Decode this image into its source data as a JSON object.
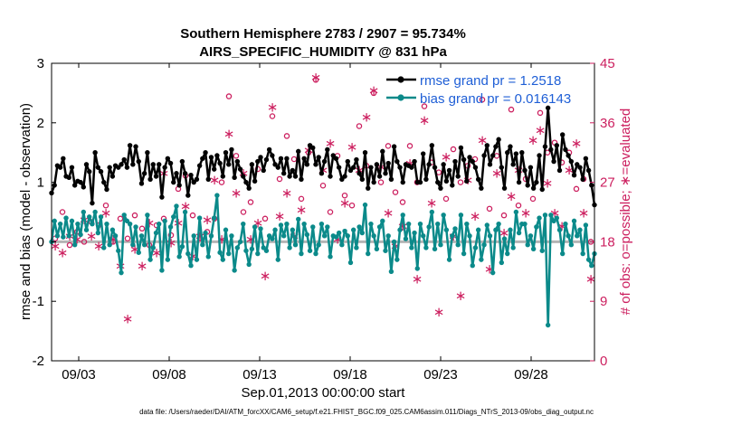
{
  "chart_data": {
    "type": "line",
    "title_line1": "Southern Hemisphere 2783 / 2907 = 95.734%",
    "title_line2": "AIRS_SPECIFIC_HUMIDITY @ 831 hPa",
    "xlabel": "Sep.01,2013 00:00:00 start",
    "ylabel_left": "rmse and bias (model - observation)",
    "ylabel_right": "# of obs: o=possible; ∗=evaluated",
    "footer": "data file: /Users/raeder/DAI/ATM_forcXX/CAM6_setup/f.e21.FHIST_BGC.f09_025.CAM6assim.011/Diags_NTrS_2013-09/obs_diag_output.nc",
    "xlim": [
      1.5,
      31.5
    ],
    "ylim_left": [
      -2,
      3
    ],
    "ylim_right": [
      0,
      45
    ],
    "x_ticks": [
      3,
      8,
      13,
      18,
      23,
      28
    ],
    "x_tick_labels": [
      "09/03",
      "09/08",
      "09/13",
      "09/18",
      "09/23",
      "09/28"
    ],
    "y_ticks_left": [
      -2,
      -1,
      0,
      1,
      2,
      3
    ],
    "y_ticks_left_labels": [
      "-2",
      "-1",
      "0",
      "1",
      "2",
      "3"
    ],
    "y_ticks_right": [
      0,
      9,
      18,
      27,
      36,
      45
    ],
    "y_ticks_right_labels": [
      "0",
      "9",
      "18",
      "27",
      "36",
      "45"
    ],
    "colors": {
      "rmse": "#000000",
      "bias": "#0b8a8a",
      "obs": "#cc1f5f",
      "zero_line": "#b4b4b4",
      "legend_text": "#1f5fd6"
    },
    "series": [
      {
        "name": "rmse grand pr = 1.2518",
        "values": [
          0.82,
          0.95,
          1.28,
          1.25,
          1.4,
          1.1,
          1.08,
          1.25,
          0.95,
          1.02,
          1.0,
          0.92,
          1.3,
          1.18,
          0.65,
          1.5,
          1.25,
          1.18,
          1.0,
          0.88,
          1.25,
          1.1,
          1.28,
          1.25,
          1.3,
          1.38,
          1.25,
          1.62,
          1.3,
          1.6,
          1.35,
          0.98,
          1.15,
          1.5,
          1.05,
          1.3,
          1.1,
          1.3,
          0.75,
          1.25,
          1.4,
          1.32,
          1.0,
          1.15,
          0.95,
          1.35,
          1.15,
          0.78,
          1.12,
          1.0,
          1.05,
          1.28,
          1.4,
          1.5,
          1.05,
          1.42,
          1.22,
          1.45,
          1.32,
          1.1,
          1.5,
          1.3,
          1.55,
          1.08,
          1.35,
          1.22,
          1.1,
          1.0,
          0.9,
          1.3,
          1.02,
          1.35,
          1.42,
          1.2,
          1.38,
          1.55,
          1.45,
          1.3,
          1.25,
          1.4,
          1.15,
          1.4,
          1.1,
          1.2,
          1.1,
          1.52,
          1.05,
          1.4,
          1.3,
          1.62,
          1.58,
          1.3,
          1.42,
          1.15,
          1.35,
          1.55,
          1.1,
          1.45,
          1.4,
          1.25,
          1.05,
          1.1,
          1.35,
          1.2,
          1.25,
          1.38,
          1.15,
          1.05,
          1.5,
          0.9,
          1.25,
          1.0,
          1.3,
          1.1,
          1.52,
          1.15,
          1.32,
          1.05,
          1.6,
          1.35,
          1.25,
          1.0,
          1.3,
          1.28,
          1.25,
          1.35,
          1.0,
          1.0,
          1.48,
          1.05,
          1.3,
          1.62,
          1.25,
          1.0,
          0.9,
          1.3,
          1.02,
          1.2,
          0.95,
          1.35,
          1.1,
          1.58,
          1.38,
          1.02,
          1.42,
          1.35,
          1.25,
          1.05,
          0.9,
          1.45,
          1.62,
          1.3,
          1.45,
          1.6,
          1.72,
          1.25,
          0.9,
          1.5,
          1.6,
          1.3,
          1.48,
          1.0,
          1.5,
          1.2,
          0.95,
          1.25,
          0.9,
          1.0,
          1.45,
          0.88,
          1.6,
          2.25,
          1.55,
          1.35,
          1.62,
          1.2,
          1.8,
          1.55,
          1.45,
          1.35,
          1.12,
          1.3,
          1.25,
          1.05,
          1.4,
          1.2,
          0.95,
          0.62
        ],
        "color": "#000000"
      },
      {
        "name": "bias grand pr = 0.016143",
        "values": [
          0.0,
          0.35,
          0.1,
          0.3,
          0.08,
          0.4,
          0.1,
          0.35,
          -0.05,
          0.3,
          0.12,
          0.5,
          0.2,
          0.42,
          0.3,
          0.5,
          0.15,
          0.42,
          -0.1,
          0.3,
          -0.05,
          0.2,
          0.1,
          -0.15,
          -0.52,
          0.45,
          0.35,
          0.3,
          -0.05,
          0.25,
          -0.18,
          0.1,
          -0.05,
          0.45,
          -0.3,
          -0.1,
          0.15,
          0.3,
          -0.48,
          0.35,
          -0.3,
          0.25,
          0.42,
          0.6,
          -0.25,
          -0.08,
          0.5,
          -0.2,
          -0.4,
          0.1,
          -0.3,
          0.4,
          -0.05,
          0.15,
          -0.25,
          0.1,
          0.4,
          0.78,
          -0.18,
          -0.3,
          0.2,
          -0.2,
          0.1,
          -0.48,
          -0.1,
          0.0,
          0.3,
          -0.15,
          -0.38,
          -0.12,
          0.25,
          -0.2,
          0.22,
          -0.1,
          -0.15,
          0.1,
          0.05,
          0.2,
          -0.3,
          0.28,
          0.1,
          0.3,
          -0.1,
          0.2,
          -0.05,
          0.38,
          -0.2,
          0.3,
          0.12,
          -0.15,
          0.25,
          -0.2,
          -0.05,
          0.3,
          0.1,
          0.25,
          -0.25,
          0.1,
          0.08,
          0.15,
          -0.05,
          0.18,
          0.1,
          -0.35,
          0.2,
          -0.1,
          0.25,
          0.15,
          0.62,
          -0.2,
          0.3,
          0.1,
          -0.12,
          0.25,
          0.35,
          -0.15,
          0.1,
          -0.5,
          0.0,
          -0.3,
          0.2,
          0.45,
          0.05,
          0.3,
          -0.1,
          0.15,
          -0.45,
          0.3,
          0.1,
          -0.1,
          0.25,
          0.5,
          -0.12,
          0.3,
          -0.05,
          0.45,
          0.2,
          -0.3,
          0.1,
          0.22,
          -0.05,
          0.45,
          -0.2,
          0.3,
          0.1,
          -0.4,
          -0.1,
          0.2,
          -0.3,
          -0.05,
          0.28,
          0.1,
          -0.52,
          0.2,
          0.3,
          -0.35,
          0.05,
          -0.2,
          0.2,
          -0.1,
          0.5,
          0.15,
          0.3,
          0.3,
          -0.05,
          0.1,
          -0.12,
          0.25,
          0.4,
          -0.15,
          0.45,
          -1.4,
          0.45,
          0.35,
          0.4,
          0.2,
          -0.2,
          0.3,
          0.1,
          -0.05,
          0.35,
          0.1,
          0.2,
          -0.2,
          0.28,
          -0.3,
          -0.4,
          -0.2
        ],
        "color": "#0b8a8a"
      }
    ],
    "obs_possible": [
      [
        1.7,
        18.5
      ],
      [
        2.1,
        22.5
      ],
      [
        2.5,
        17.5
      ],
      [
        2.9,
        19.5
      ],
      [
        3.3,
        18.0
      ],
      [
        3.7,
        21.0
      ],
      [
        4.1,
        20.5
      ],
      [
        4.5,
        23.5
      ],
      [
        4.9,
        18.0
      ],
      [
        5.3,
        21.5
      ],
      [
        5.7,
        18.5
      ],
      [
        6.1,
        22.0
      ],
      [
        6.5,
        20.0
      ],
      [
        6.9,
        17.5
      ],
      [
        7.3,
        20.5
      ],
      [
        7.7,
        21.5
      ],
      [
        8.1,
        19.0
      ],
      [
        8.5,
        26.0
      ],
      [
        8.9,
        28.0
      ],
      [
        9.3,
        22.0
      ],
      [
        9.7,
        18.5
      ],
      [
        10.1,
        19.5
      ],
      [
        10.5,
        21.5
      ],
      [
        10.9,
        27.0
      ],
      [
        11.3,
        40.0
      ],
      [
        11.7,
        31.0
      ],
      [
        12.1,
        22.5
      ],
      [
        12.5,
        24.0
      ],
      [
        12.9,
        29.0
      ],
      [
        13.3,
        21.5
      ],
      [
        13.7,
        37.0
      ],
      [
        14.1,
        27.5
      ],
      [
        14.5,
        34.0
      ],
      [
        14.9,
        30.5
      ],
      [
        15.3,
        24.5
      ],
      [
        15.7,
        31.5
      ],
      [
        16.1,
        42.5
      ],
      [
        16.5,
        26.5
      ],
      [
        16.9,
        22.5
      ],
      [
        17.3,
        31.0
      ],
      [
        17.7,
        25.0
      ],
      [
        18.1,
        23.5
      ],
      [
        18.5,
        35.5
      ],
      [
        18.9,
        29.5
      ],
      [
        19.3,
        40.5
      ],
      [
        19.7,
        27.0
      ],
      [
        20.1,
        32.5
      ],
      [
        20.5,
        25.5
      ],
      [
        20.9,
        24.0
      ],
      [
        21.3,
        32.5
      ],
      [
        21.7,
        27.0
      ],
      [
        22.1,
        38.5
      ],
      [
        22.5,
        30.0
      ],
      [
        22.9,
        28.5
      ],
      [
        23.3,
        24.5
      ],
      [
        23.7,
        32.0
      ],
      [
        24.1,
        27.0
      ],
      [
        24.5,
        29.5
      ],
      [
        24.9,
        30.5
      ],
      [
        25.3,
        39.5
      ],
      [
        25.7,
        23.0
      ],
      [
        26.1,
        31.0
      ],
      [
        26.5,
        22.0
      ],
      [
        26.9,
        38.0
      ],
      [
        27.3,
        23.5
      ],
      [
        27.7,
        27.5
      ],
      [
        28.1,
        24.5
      ],
      [
        28.5,
        37.5
      ],
      [
        28.9,
        31.5
      ],
      [
        29.3,
        33.0
      ],
      [
        29.7,
        30.0
      ],
      [
        30.1,
        31.5
      ],
      [
        30.5,
        26.0
      ],
      [
        30.9,
        27.5
      ],
      [
        31.3,
        18.0
      ]
    ],
    "obs_evaluated": [
      [
        1.7,
        17.5
      ],
      [
        2.1,
        16.5
      ],
      [
        2.5,
        19.0
      ],
      [
        2.9,
        18.5
      ],
      [
        3.3,
        21.5
      ],
      [
        3.7,
        19.0
      ],
      [
        4.1,
        17.5
      ],
      [
        4.5,
        22.5
      ],
      [
        4.9,
        18.5
      ],
      [
        5.3,
        14.5
      ],
      [
        5.7,
        6.5
      ],
      [
        6.1,
        17.0
      ],
      [
        6.5,
        14.5
      ],
      [
        6.9,
        21.0
      ],
      [
        7.3,
        16.5
      ],
      [
        7.7,
        28.5
      ],
      [
        8.1,
        18.0
      ],
      [
        8.5,
        21.0
      ],
      [
        8.9,
        23.5
      ],
      [
        9.3,
        16.0
      ],
      [
        9.7,
        19.0
      ],
      [
        10.1,
        21.5
      ],
      [
        10.5,
        27.5
      ],
      [
        10.9,
        18.5
      ],
      [
        11.3,
        34.5
      ],
      [
        11.7,
        25.5
      ],
      [
        12.1,
        28.5
      ],
      [
        12.5,
        18.5
      ],
      [
        12.9,
        21.0
      ],
      [
        13.3,
        13.0
      ],
      [
        13.7,
        38.5
      ],
      [
        14.1,
        22.0
      ],
      [
        14.5,
        25.5
      ],
      [
        14.9,
        19.0
      ],
      [
        15.3,
        23.0
      ],
      [
        15.7,
        32.0
      ],
      [
        16.1,
        43.0
      ],
      [
        16.5,
        29.0
      ],
      [
        16.9,
        33.0
      ],
      [
        17.3,
        18.5
      ],
      [
        17.7,
        24.0
      ],
      [
        18.1,
        32.5
      ],
      [
        18.5,
        29.0
      ],
      [
        18.9,
        37.0
      ],
      [
        19.3,
        41.0
      ],
      [
        19.7,
        29.5
      ],
      [
        20.1,
        22.5
      ],
      [
        20.5,
        17.5
      ],
      [
        20.9,
        20.5
      ],
      [
        21.3,
        30.0
      ],
      [
        21.7,
        12.5
      ],
      [
        22.1,
        36.5
      ],
      [
        22.5,
        24.0
      ],
      [
        22.9,
        7.5
      ],
      [
        23.3,
        31.0
      ],
      [
        23.7,
        19.0
      ],
      [
        24.1,
        10.0
      ],
      [
        24.5,
        27.5
      ],
      [
        24.9,
        22.0
      ],
      [
        25.3,
        33.5
      ],
      [
        25.7,
        14.0
      ],
      [
        26.1,
        28.5
      ],
      [
        26.5,
        19.5
      ],
      [
        26.9,
        25.0
      ],
      [
        27.3,
        29.0
      ],
      [
        27.7,
        22.5
      ],
      [
        28.1,
        33.5
      ],
      [
        28.5,
        35.0
      ],
      [
        28.9,
        27.0
      ],
      [
        29.3,
        22.5
      ],
      [
        29.7,
        20.5
      ],
      [
        30.1,
        29.0
      ],
      [
        30.5,
        33.0
      ],
      [
        30.9,
        22.5
      ],
      [
        31.3,
        12.5
      ]
    ],
    "legend": {
      "location": "top-right",
      "entries": [
        "rmse grand pr = 1.2518",
        "bias grand pr = 0.016143"
      ]
    }
  }
}
